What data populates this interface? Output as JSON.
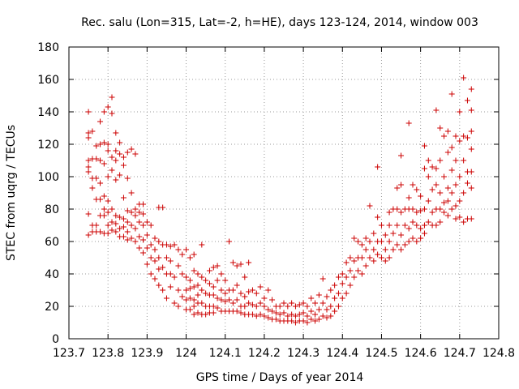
{
  "chart_data": {
    "type": "scatter",
    "title": "Rec. salu (Lon=315, Lat=-2, h=HE), days 123-124, 2014, window 003",
    "xlabel": "GPS time / Days of year 2014",
    "ylabel": "STEC from uqrg / TECUs",
    "xlim": [
      123.7,
      124.8
    ],
    "ylim": [
      0,
      180
    ],
    "xticks": [
      "123.7",
      "123.8",
      "123.9",
      "124",
      "124.1",
      "124.2",
      "124.3",
      "124.4",
      "124.5",
      "124.6",
      "124.7",
      "124.8"
    ],
    "yticks": [
      "0",
      "20",
      "40",
      "60",
      "80",
      "100",
      "120",
      "140",
      "160",
      "180"
    ],
    "grid": true,
    "marker": "+",
    "color": "#cc0000",
    "points": [
      [
        123.75,
        140
      ],
      [
        123.75,
        127
      ],
      [
        123.75,
        124
      ],
      [
        123.75,
        110
      ],
      [
        123.75,
        106
      ],
      [
        123.75,
        103
      ],
      [
        123.75,
        77
      ],
      [
        123.75,
        64
      ],
      [
        123.76,
        128
      ],
      [
        123.76,
        111
      ],
      [
        123.76,
        99
      ],
      [
        123.76,
        93
      ],
      [
        123.76,
        70
      ],
      [
        123.76,
        66
      ],
      [
        123.77,
        119
      ],
      [
        123.77,
        111
      ],
      [
        123.77,
        99
      ],
      [
        123.77,
        86
      ],
      [
        123.77,
        70
      ],
      [
        123.77,
        66
      ],
      [
        123.78,
        134
      ],
      [
        123.78,
        120
      ],
      [
        123.78,
        110
      ],
      [
        123.78,
        96
      ],
      [
        123.78,
        86
      ],
      [
        123.78,
        76
      ],
      [
        123.78,
        66
      ],
      [
        123.79,
        140
      ],
      [
        123.79,
        121
      ],
      [
        123.79,
        108
      ],
      [
        123.79,
        88
      ],
      [
        123.79,
        80
      ],
      [
        123.79,
        76
      ],
      [
        123.79,
        65
      ],
      [
        123.8,
        143
      ],
      [
        123.8,
        120
      ],
      [
        123.8,
        116
      ],
      [
        123.8,
        100
      ],
      [
        123.8,
        85
      ],
      [
        123.8,
        78
      ],
      [
        123.8,
        70
      ],
      [
        123.8,
        65
      ],
      [
        123.81,
        149
      ],
      [
        123.81,
        139
      ],
      [
        123.81,
        112
      ],
      [
        123.81,
        104
      ],
      [
        123.81,
        80
      ],
      [
        123.81,
        72
      ],
      [
        123.81,
        67
      ],
      [
        123.82,
        127
      ],
      [
        123.82,
        116
      ],
      [
        123.82,
        110
      ],
      [
        123.82,
        98
      ],
      [
        123.82,
        76
      ],
      [
        123.82,
        71
      ],
      [
        123.82,
        66
      ],
      [
        123.83,
        121
      ],
      [
        123.83,
        114
      ],
      [
        123.83,
        101
      ],
      [
        123.83,
        75
      ],
      [
        123.83,
        68
      ],
      [
        123.83,
        63
      ],
      [
        123.84,
        112
      ],
      [
        123.84,
        107
      ],
      [
        123.84,
        87
      ],
      [
        123.84,
        74
      ],
      [
        123.84,
        69
      ],
      [
        123.84,
        63
      ],
      [
        123.85,
        115
      ],
      [
        123.85,
        99
      ],
      [
        123.85,
        79
      ],
      [
        123.85,
        72
      ],
      [
        123.85,
        66
      ],
      [
        123.85,
        61
      ],
      [
        123.86,
        117
      ],
      [
        123.86,
        90
      ],
      [
        123.86,
        78
      ],
      [
        123.86,
        70
      ],
      [
        123.86,
        62
      ],
      [
        123.87,
        114
      ],
      [
        123.87,
        80
      ],
      [
        123.87,
        76
      ],
      [
        123.87,
        68
      ],
      [
        123.87,
        60
      ],
      [
        123.88,
        83
      ],
      [
        123.88,
        78
      ],
      [
        123.88,
        72
      ],
      [
        123.88,
        63
      ],
      [
        123.88,
        56
      ],
      [
        123.89,
        83
      ],
      [
        123.89,
        77
      ],
      [
        123.89,
        70
      ],
      [
        123.89,
        61
      ],
      [
        123.89,
        53
      ],
      [
        123.9,
        72
      ],
      [
        123.9,
        64
      ],
      [
        123.9,
        56
      ],
      [
        123.9,
        46
      ],
      [
        123.91,
        70
      ],
      [
        123.91,
        58
      ],
      [
        123.91,
        50
      ],
      [
        123.91,
        40
      ],
      [
        123.92,
        62
      ],
      [
        123.92,
        55
      ],
      [
        123.92,
        48
      ],
      [
        123.92,
        37
      ],
      [
        123.93,
        81
      ],
      [
        123.93,
        60
      ],
      [
        123.93,
        50
      ],
      [
        123.93,
        43
      ],
      [
        123.93,
        33
      ],
      [
        123.94,
        81
      ],
      [
        123.94,
        58
      ],
      [
        123.94,
        44
      ],
      [
        123.94,
        30
      ],
      [
        123.95,
        58
      ],
      [
        123.95,
        50
      ],
      [
        123.95,
        40
      ],
      [
        123.95,
        25
      ],
      [
        123.96,
        57
      ],
      [
        123.96,
        48
      ],
      [
        123.96,
        40
      ],
      [
        123.96,
        32
      ],
      [
        123.97,
        58
      ],
      [
        123.97,
        38
      ],
      [
        123.97,
        22
      ],
      [
        123.98,
        55
      ],
      [
        123.98,
        45
      ],
      [
        123.98,
        30
      ],
      [
        123.98,
        20
      ],
      [
        123.99,
        52
      ],
      [
        123.99,
        40
      ],
      [
        123.99,
        26
      ],
      [
        124.0,
        55
      ],
      [
        124.0,
        38
      ],
      [
        124.0,
        30
      ],
      [
        124.0,
        24
      ],
      [
        124.0,
        18
      ],
      [
        124.01,
        50
      ],
      [
        124.01,
        36
      ],
      [
        124.01,
        31
      ],
      [
        124.01,
        25
      ],
      [
        124.01,
        18
      ],
      [
        124.02,
        52
      ],
      [
        124.02,
        42
      ],
      [
        124.02,
        32
      ],
      [
        124.02,
        24
      ],
      [
        124.02,
        20
      ],
      [
        124.02,
        15
      ],
      [
        124.03,
        40
      ],
      [
        124.03,
        33
      ],
      [
        124.03,
        27
      ],
      [
        124.03,
        22
      ],
      [
        124.03,
        16
      ],
      [
        124.04,
        58
      ],
      [
        124.04,
        38
      ],
      [
        124.04,
        30
      ],
      [
        124.04,
        22
      ],
      [
        124.04,
        15
      ],
      [
        124.05,
        36
      ],
      [
        124.05,
        28
      ],
      [
        124.05,
        20
      ],
      [
        124.05,
        15
      ],
      [
        124.06,
        42
      ],
      [
        124.06,
        34
      ],
      [
        124.06,
        27
      ],
      [
        124.06,
        20
      ],
      [
        124.06,
        16
      ],
      [
        124.07,
        44
      ],
      [
        124.07,
        32
      ],
      [
        124.07,
        27
      ],
      [
        124.07,
        20
      ],
      [
        124.07,
        16
      ],
      [
        124.08,
        45
      ],
      [
        124.08,
        36
      ],
      [
        124.08,
        25
      ],
      [
        124.08,
        19
      ],
      [
        124.09,
        40
      ],
      [
        124.09,
        30
      ],
      [
        124.09,
        24
      ],
      [
        124.09,
        17
      ],
      [
        124.1,
        36
      ],
      [
        124.1,
        28
      ],
      [
        124.1,
        23
      ],
      [
        124.1,
        17
      ],
      [
        124.11,
        60
      ],
      [
        124.11,
        30
      ],
      [
        124.11,
        24
      ],
      [
        124.11,
        17
      ],
      [
        124.12,
        47
      ],
      [
        124.12,
        30
      ],
      [
        124.12,
        22
      ],
      [
        124.12,
        17
      ],
      [
        124.13,
        45
      ],
      [
        124.13,
        33
      ],
      [
        124.13,
        24
      ],
      [
        124.13,
        17
      ],
      [
        124.14,
        46
      ],
      [
        124.14,
        28
      ],
      [
        124.14,
        20
      ],
      [
        124.14,
        16
      ],
      [
        124.15,
        38
      ],
      [
        124.15,
        26
      ],
      [
        124.15,
        20
      ],
      [
        124.15,
        15
      ],
      [
        124.16,
        47
      ],
      [
        124.16,
        29
      ],
      [
        124.16,
        22
      ],
      [
        124.16,
        15
      ],
      [
        124.17,
        30
      ],
      [
        124.17,
        21
      ],
      [
        124.17,
        15
      ],
      [
        124.18,
        28
      ],
      [
        124.18,
        20
      ],
      [
        124.18,
        14
      ],
      [
        124.19,
        32
      ],
      [
        124.19,
        22
      ],
      [
        124.19,
        15
      ],
      [
        124.2,
        25
      ],
      [
        124.2,
        20
      ],
      [
        124.2,
        14
      ],
      [
        124.21,
        30
      ],
      [
        124.21,
        18
      ],
      [
        124.21,
        13
      ],
      [
        124.22,
        24
      ],
      [
        124.22,
        17
      ],
      [
        124.22,
        12
      ],
      [
        124.23,
        20
      ],
      [
        124.23,
        16
      ],
      [
        124.23,
        12
      ],
      [
        124.24,
        20
      ],
      [
        124.24,
        15
      ],
      [
        124.24,
        11
      ],
      [
        124.25,
        22
      ],
      [
        124.25,
        16
      ],
      [
        124.25,
        11
      ],
      [
        124.26,
        20
      ],
      [
        124.26,
        14
      ],
      [
        124.26,
        11
      ],
      [
        124.27,
        22
      ],
      [
        124.27,
        15
      ],
      [
        124.27,
        11
      ],
      [
        124.28,
        20
      ],
      [
        124.28,
        14
      ],
      [
        124.28,
        10
      ],
      [
        124.29,
        21
      ],
      [
        124.29,
        15
      ],
      [
        124.29,
        11
      ],
      [
        124.3,
        22
      ],
      [
        124.3,
        16
      ],
      [
        124.3,
        11
      ],
      [
        124.31,
        20
      ],
      [
        124.31,
        14
      ],
      [
        124.31,
        10
      ],
      [
        124.32,
        25
      ],
      [
        124.32,
        17
      ],
      [
        124.32,
        12
      ],
      [
        124.33,
        22
      ],
      [
        124.33,
        15
      ],
      [
        124.33,
        11
      ],
      [
        124.34,
        27
      ],
      [
        124.34,
        18
      ],
      [
        124.34,
        12
      ],
      [
        124.35,
        37
      ],
      [
        124.35,
        22
      ],
      [
        124.35,
        14
      ],
      [
        124.36,
        26
      ],
      [
        124.36,
        18
      ],
      [
        124.36,
        13
      ],
      [
        124.37,
        30
      ],
      [
        124.37,
        20
      ],
      [
        124.37,
        14
      ],
      [
        124.38,
        33
      ],
      [
        124.38,
        25
      ],
      [
        124.38,
        17
      ],
      [
        124.39,
        38
      ],
      [
        124.39,
        28
      ],
      [
        124.39,
        20
      ],
      [
        124.4,
        40
      ],
      [
        124.4,
        34
      ],
      [
        124.4,
        25
      ],
      [
        124.41,
        47
      ],
      [
        124.41,
        38
      ],
      [
        124.41,
        28
      ],
      [
        124.42,
        50
      ],
      [
        124.42,
        42
      ],
      [
        124.42,
        33
      ],
      [
        124.43,
        62
      ],
      [
        124.43,
        48
      ],
      [
        124.43,
        38
      ],
      [
        124.44,
        60
      ],
      [
        124.44,
        50
      ],
      [
        124.44,
        42
      ],
      [
        124.45,
        58
      ],
      [
        124.45,
        50
      ],
      [
        124.45,
        40
      ],
      [
        124.46,
        62
      ],
      [
        124.46,
        55
      ],
      [
        124.46,
        45
      ],
      [
        124.47,
        82
      ],
      [
        124.47,
        60
      ],
      [
        124.47,
        50
      ],
      [
        124.48,
        65
      ],
      [
        124.48,
        55
      ],
      [
        124.48,
        48
      ],
      [
        124.49,
        106
      ],
      [
        124.49,
        75
      ],
      [
        124.49,
        60
      ],
      [
        124.49,
        52
      ],
      [
        124.5,
        70
      ],
      [
        124.5,
        60
      ],
      [
        124.5,
        50
      ],
      [
        124.51,
        64
      ],
      [
        124.51,
        55
      ],
      [
        124.51,
        48
      ],
      [
        124.52,
        78
      ],
      [
        124.52,
        70
      ],
      [
        124.52,
        60
      ],
      [
        124.52,
        50
      ],
      [
        124.53,
        80
      ],
      [
        124.53,
        65
      ],
      [
        124.53,
        55
      ],
      [
        124.54,
        93
      ],
      [
        124.54,
        80
      ],
      [
        124.54,
        70
      ],
      [
        124.54,
        58
      ],
      [
        124.55,
        113
      ],
      [
        124.55,
        95
      ],
      [
        124.55,
        78
      ],
      [
        124.55,
        64
      ],
      [
        124.55,
        55
      ],
      [
        124.56,
        80
      ],
      [
        124.56,
        70
      ],
      [
        124.56,
        58
      ],
      [
        124.57,
        133
      ],
      [
        124.57,
        87
      ],
      [
        124.57,
        80
      ],
      [
        124.57,
        68
      ],
      [
        124.57,
        60
      ],
      [
        124.58,
        95
      ],
      [
        124.58,
        80
      ],
      [
        124.58,
        72
      ],
      [
        124.58,
        62
      ],
      [
        124.59,
        92
      ],
      [
        124.59,
        78
      ],
      [
        124.59,
        70
      ],
      [
        124.59,
        60
      ],
      [
        124.6,
        88
      ],
      [
        124.6,
        79
      ],
      [
        124.6,
        68
      ],
      [
        124.6,
        62
      ],
      [
        124.61,
        119
      ],
      [
        124.61,
        105
      ],
      [
        124.61,
        80
      ],
      [
        124.61,
        70
      ],
      [
        124.61,
        65
      ],
      [
        124.62,
        110
      ],
      [
        124.62,
        100
      ],
      [
        124.62,
        85
      ],
      [
        124.62,
        72
      ],
      [
        124.63,
        106
      ],
      [
        124.63,
        92
      ],
      [
        124.63,
        78
      ],
      [
        124.63,
        70
      ],
      [
        124.64,
        141
      ],
      [
        124.64,
        105
      ],
      [
        124.64,
        95
      ],
      [
        124.64,
        80
      ],
      [
        124.64,
        70
      ],
      [
        124.65,
        130
      ],
      [
        124.65,
        110
      ],
      [
        124.65,
        90
      ],
      [
        124.65,
        80
      ],
      [
        124.65,
        72
      ],
      [
        124.66,
        125
      ],
      [
        124.66,
        100
      ],
      [
        124.66,
        84
      ],
      [
        124.66,
        78
      ],
      [
        124.67,
        128
      ],
      [
        124.67,
        115
      ],
      [
        124.67,
        93
      ],
      [
        124.67,
        85
      ],
      [
        124.67,
        76
      ],
      [
        124.68,
        151
      ],
      [
        124.68,
        118
      ],
      [
        124.68,
        104
      ],
      [
        124.68,
        90
      ],
      [
        124.68,
        80
      ],
      [
        124.69,
        125
      ],
      [
        124.69,
        110
      ],
      [
        124.69,
        95
      ],
      [
        124.69,
        82
      ],
      [
        124.69,
        74
      ],
      [
        124.7,
        140
      ],
      [
        124.7,
        122
      ],
      [
        124.7,
        100
      ],
      [
        124.7,
        85
      ],
      [
        124.7,
        75
      ],
      [
        124.71,
        161
      ],
      [
        124.71,
        125
      ],
      [
        124.71,
        110
      ],
      [
        124.71,
        90
      ],
      [
        124.71,
        72
      ],
      [
        124.72,
        147
      ],
      [
        124.72,
        124
      ],
      [
        124.72,
        103
      ],
      [
        124.72,
        96
      ],
      [
        124.72,
        74
      ],
      [
        124.73,
        154
      ],
      [
        124.73,
        141
      ],
      [
        124.73,
        128
      ],
      [
        124.73,
        117
      ],
      [
        124.73,
        103
      ],
      [
        124.73,
        93
      ],
      [
        124.73,
        74
      ]
    ]
  }
}
